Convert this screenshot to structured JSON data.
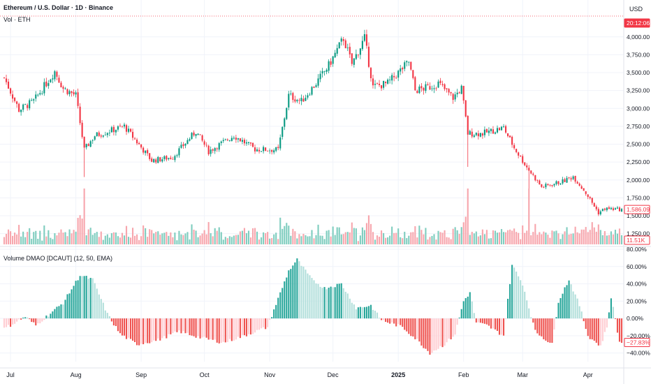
{
  "header": {
    "title": "Ethereum / U.S. Dollar · 1D · Binance",
    "volume_label": "Vol · ETH",
    "currency": "USD",
    "indicator_label": "Volume DMAO [DCAUT] (12, 50, EMA)"
  },
  "colors": {
    "up": "#089981",
    "down": "#f23645",
    "vol_up": "#7fcdbf",
    "vol_down": "#f7a6ad",
    "osc_up_strong": "#26a69a",
    "osc_up_weak": "#b2dfdb",
    "osc_down_strong": "#ef5350",
    "osc_down_weak": "#ffcdd2",
    "countdown_bg": "#f23645",
    "grid": "#f0f3fa"
  },
  "price_axis": {
    "ticks": [
      "4,000.00",
      "3,750.00",
      "3,500.00",
      "3,250.00",
      "3,000.00",
      "2,750.00",
      "2,500.00",
      "2,250.00",
      "2,000.00",
      "1,750.00",
      "1,500.00",
      "1,250.00"
    ],
    "last_price_label": "1,586.09",
    "countdown_label": "20:12:06",
    "volume_label": "11.51K"
  },
  "osc_axis": {
    "ticks": [
      "80.00%",
      "60.00%",
      "40.00%",
      "20.00%",
      "0.00%",
      "−20.00%",
      "−40.00%"
    ],
    "last_value_label": "−27.83%"
  },
  "time_axis": {
    "labels": [
      {
        "text": "Jul",
        "bold": false
      },
      {
        "text": "Aug",
        "bold": false
      },
      {
        "text": "Sep",
        "bold": false
      },
      {
        "text": "Oct",
        "bold": false
      },
      {
        "text": "Nov",
        "bold": false
      },
      {
        "text": "Dec",
        "bold": false
      },
      {
        "text": "2025",
        "bold": true
      },
      {
        "text": "Feb",
        "bold": false
      },
      {
        "text": "Mar",
        "bold": false
      },
      {
        "text": "Apr",
        "bold": false
      }
    ]
  },
  "chart_data": {
    "type": "candlestick",
    "symbol": "Ethereum / U.S. Dollar",
    "interval": "1D",
    "exchange": "Binance",
    "x_start": "2024-06-28",
    "x_end": "2025-04-17",
    "price_range": [
      1100,
      4300
    ],
    "price_anchors": [
      [
        "2024-06-28",
        3430
      ],
      [
        "2024-07-05",
        2980
      ],
      [
        "2024-07-12",
        3100
      ],
      [
        "2024-07-22",
        3520
      ],
      [
        "2024-07-26",
        3280
      ],
      [
        "2024-08-01",
        3180
      ],
      [
        "2024-08-05",
        2420
      ],
      [
        "2024-08-10",
        2620
      ],
      [
        "2024-08-24",
        2750
      ],
      [
        "2024-09-06",
        2270
      ],
      [
        "2024-09-16",
        2320
      ],
      [
        "2024-09-27",
        2680
      ],
      [
        "2024-10-03",
        2400
      ],
      [
        "2024-10-15",
        2620
      ],
      [
        "2024-10-25",
        2430
      ],
      [
        "2024-11-05",
        2420
      ],
      [
        "2024-11-10",
        3180
      ],
      [
        "2024-11-16",
        3100
      ],
      [
        "2024-11-23",
        3350
      ],
      [
        "2024-11-29",
        3600
      ],
      [
        "2024-12-06",
        3980
      ],
      [
        "2024-12-10",
        3620
      ],
      [
        "2024-12-16",
        3980
      ],
      [
        "2024-12-20",
        3300
      ],
      [
        "2024-12-27",
        3350
      ],
      [
        "2025-01-06",
        3650
      ],
      [
        "2025-01-09",
        3250
      ],
      [
        "2025-01-16",
        3300
      ],
      [
        "2025-01-20",
        3350
      ],
      [
        "2025-01-27",
        3150
      ],
      [
        "2025-01-31",
        3280
      ],
      [
        "2025-02-03",
        2650
      ],
      [
        "2025-02-10",
        2650
      ],
      [
        "2025-02-20",
        2730
      ],
      [
        "2025-02-25",
        2450
      ],
      [
        "2025-03-03",
        2180
      ],
      [
        "2025-03-10",
        1900
      ],
      [
        "2025-03-20",
        1980
      ],
      [
        "2025-03-25",
        2050
      ],
      [
        "2025-03-31",
        1820
      ],
      [
        "2025-04-06",
        1540
      ],
      [
        "2025-04-09",
        1600
      ],
      [
        "2025-04-17",
        1586
      ]
    ],
    "last_price": 1586.09,
    "volume_last": "11.51K",
    "volume_spikes": [
      "2024-08-05",
      "2025-02-03",
      "2025-03-04"
    ],
    "indicator": {
      "name": "Volume DMAO",
      "params": "12, 50, EMA",
      "unit": "%",
      "range": [
        -50,
        80
      ],
      "anchors": [
        [
          "2024-06-28",
          -12
        ],
        [
          "2024-07-08",
          2
        ],
        [
          "2024-07-13",
          -8
        ],
        [
          "2024-07-26",
          18
        ],
        [
          "2024-08-03",
          50
        ],
        [
          "2024-08-09",
          45
        ],
        [
          "2024-08-16",
          5
        ],
        [
          "2024-08-22",
          -18
        ],
        [
          "2024-08-30",
          -30
        ],
        [
          "2024-09-09",
          -25
        ],
        [
          "2024-09-19",
          -15
        ],
        [
          "2024-09-29",
          -22
        ],
        [
          "2024-10-10",
          -28
        ],
        [
          "2024-10-20",
          -20
        ],
        [
          "2024-10-31",
          -10
        ],
        [
          "2024-11-03",
          10
        ],
        [
          "2024-11-10",
          55
        ],
        [
          "2024-11-14",
          68
        ],
        [
          "2024-11-21",
          45
        ],
        [
          "2024-11-27",
          35
        ],
        [
          "2024-12-05",
          40
        ],
        [
          "2024-12-12",
          12
        ],
        [
          "2024-12-19",
          15
        ],
        [
          "2024-12-24",
          -2
        ],
        [
          "2025-01-03",
          -10
        ],
        [
          "2025-01-10",
          -25
        ],
        [
          "2025-01-16",
          -40
        ],
        [
          "2025-01-23",
          -30
        ],
        [
          "2025-01-28",
          -18
        ],
        [
          "2025-02-01",
          20
        ],
        [
          "2025-02-04",
          30
        ],
        [
          "2025-02-07",
          -5
        ],
        [
          "2025-02-12",
          -8
        ],
        [
          "2025-02-20",
          -20
        ],
        [
          "2025-02-24",
          62
        ],
        [
          "2025-03-01",
          40
        ],
        [
          "2025-03-07",
          -15
        ],
        [
          "2025-03-15",
          -30
        ],
        [
          "2025-03-18",
          20
        ],
        [
          "2025-03-23",
          45
        ],
        [
          "2025-03-28",
          15
        ],
        [
          "2025-04-01",
          -20
        ],
        [
          "2025-04-07",
          -32
        ],
        [
          "2025-04-10",
          -10
        ],
        [
          "2025-04-12",
          25
        ],
        [
          "2025-04-16",
          -27.83
        ],
        [
          "2025-04-17",
          -27.83
        ]
      ],
      "last_value": -27.83
    }
  }
}
